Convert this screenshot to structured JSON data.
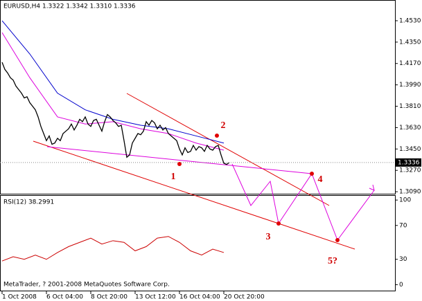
{
  "chart_data": {
    "type": "line",
    "header": "EURUSD,H4  1.3322 1.3342 1.3310 1.3336",
    "categories": [
      "1 Oct 2008",
      null,
      null,
      null,
      null,
      null,
      null,
      null,
      null,
      null,
      null,
      null,
      null,
      null,
      null,
      null,
      "6 Oct 04:00",
      null,
      null,
      null,
      null,
      null,
      null,
      null,
      null,
      null,
      null,
      null,
      null,
      null,
      null,
      null,
      "8 Oct 20:00",
      null,
      null,
      null,
      null,
      null,
      null,
      null,
      null,
      null,
      null,
      null,
      null,
      null,
      null,
      null,
      "13 Oct 12:00",
      null,
      null,
      null,
      null,
      null,
      null,
      null,
      null,
      null,
      null,
      null,
      null,
      null,
      null,
      null,
      "16 Oct 04:00",
      null,
      null,
      null,
      null,
      null,
      null,
      null,
      null,
      null,
      null,
      null,
      null,
      null,
      null,
      null,
      "20 Oct 20:00",
      null,
      null
    ],
    "values": [
      1.418,
      1.412,
      1.409,
      1.405,
      1.403,
      1.398,
      1.395,
      1.392,
      1.388,
      1.389,
      1.384,
      1.381,
      1.378,
      1.372,
      1.364,
      1.358,
      1.352,
      1.356,
      1.349,
      1.35,
      1.354,
      1.352,
      1.358,
      1.36,
      1.362,
      1.366,
      1.361,
      1.365,
      1.37,
      1.368,
      1.372,
      1.366,
      1.364,
      1.369,
      1.37,
      1.365,
      1.36,
      1.368,
      1.374,
      1.372,
      1.369,
      1.367,
      1.364,
      1.365,
      1.352,
      1.338,
      1.34,
      1.35,
      1.354,
      1.358,
      1.357,
      1.36,
      1.368,
      1.365,
      1.369,
      1.367,
      1.362,
      1.365,
      1.361,
      1.363,
      1.358,
      1.356,
      1.354,
      1.352,
      1.345,
      1.34,
      1.346,
      1.342,
      1.343,
      1.348,
      1.344,
      1.347,
      1.346,
      1.343,
      1.348,
      1.345,
      1.344,
      1.347,
      1.348,
      1.34,
      1.333,
      1.332,
      1.3336
    ],
    "color": "#000000",
    "moving_averages": [
      {
        "color": "#0000cc",
        "x": [
          0,
          10,
          20,
          30,
          40,
          50,
          60,
          70,
          80
        ],
        "values": [
          1.453,
          1.425,
          1.392,
          1.378,
          1.37,
          1.365,
          1.362,
          1.356,
          1.35
        ]
      },
      {
        "color": "#dd00dd",
        "x": [
          0,
          10,
          20,
          30,
          40,
          50,
          60,
          70,
          80
        ],
        "values": [
          1.443,
          1.405,
          1.372,
          1.366,
          1.368,
          1.362,
          1.358,
          1.35,
          1.344
        ]
      }
    ],
    "last_price": 1.3336,
    "ylim": [
      1.3073,
      1.4693
    ],
    "yticks": [
      {
        "value": 1.453,
        "label": "1.4530"
      },
      {
        "value": 1.435,
        "label": "1.4350"
      },
      {
        "value": 1.417,
        "label": "1.4170"
      },
      {
        "value": 1.399,
        "label": "1.3990"
      },
      {
        "value": 1.381,
        "label": "1.3810"
      },
      {
        "value": 1.363,
        "label": "1.3630"
      },
      {
        "value": 1.345,
        "label": "1.3450"
      },
      {
        "value": 1.327,
        "label": "1.3270"
      },
      {
        "value": 1.309,
        "label": "1.3090"
      }
    ],
    "annotations": [
      "1",
      "2",
      "3",
      "4",
      "5?"
    ],
    "rsi": {
      "title": "RSI(12) 38.2991",
      "color": "#cc0000",
      "x": [
        0,
        4,
        8,
        12,
        16,
        20,
        24,
        28,
        32,
        36,
        40,
        44,
        48,
        52,
        56,
        60,
        64,
        68,
        72,
        76,
        80
      ],
      "values": [
        28,
        33,
        30,
        35,
        30,
        38,
        45,
        50,
        55,
        48,
        52,
        50,
        40,
        45,
        55,
        57,
        50,
        40,
        35,
        42,
        38
      ],
      "ylim": [
        -7,
        105
      ],
      "yticks": [
        100,
        70,
        30,
        0
      ]
    },
    "footer": "MetaTrader, ? 2001-2008 MetaQuotes Software Corp."
  }
}
